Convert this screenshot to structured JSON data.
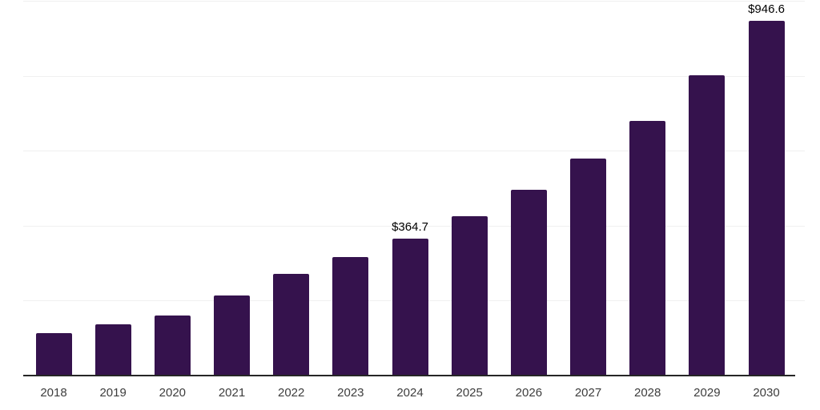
{
  "chart": {
    "background_color": "#ffffff",
    "bar_color": "#35124d",
    "gridline_color": "#f0f0f0",
    "axis_line_color": "#262626",
    "tick_label_color": "#3d3d3d",
    "data_label_color": "#000000"
  },
  "chart_data": {
    "type": "bar",
    "title": "",
    "xlabel": "",
    "ylabel": "",
    "categories": [
      "2018",
      "2019",
      "2020",
      "2021",
      "2022",
      "2023",
      "2024",
      "2025",
      "2026",
      "2027",
      "2028",
      "2029",
      "2030"
    ],
    "values": [
      113,
      137,
      160,
      214,
      271,
      316,
      364.7,
      425,
      496,
      579,
      680,
      801,
      946.6
    ],
    "data_labels": [
      "",
      "",
      "",
      "",
      "",
      "",
      "$364.7",
      "",
      "",
      "",
      "",
      "",
      "$946.6"
    ],
    "ylim": [
      0,
      1000
    ],
    "gridline_step": 200,
    "grid": "horizontal",
    "legend": "none",
    "y_axis_labels_visible": false
  }
}
